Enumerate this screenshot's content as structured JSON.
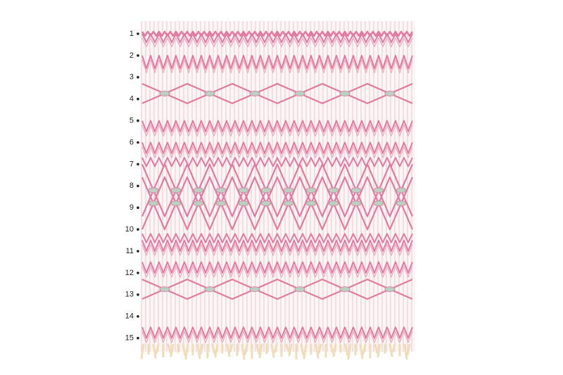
{
  "rows": [
    "1",
    "2",
    "3",
    "4",
    "5",
    "6",
    "7",
    "8",
    "9",
    "10",
    "11",
    "12",
    "13",
    "14",
    "15"
  ]
}
